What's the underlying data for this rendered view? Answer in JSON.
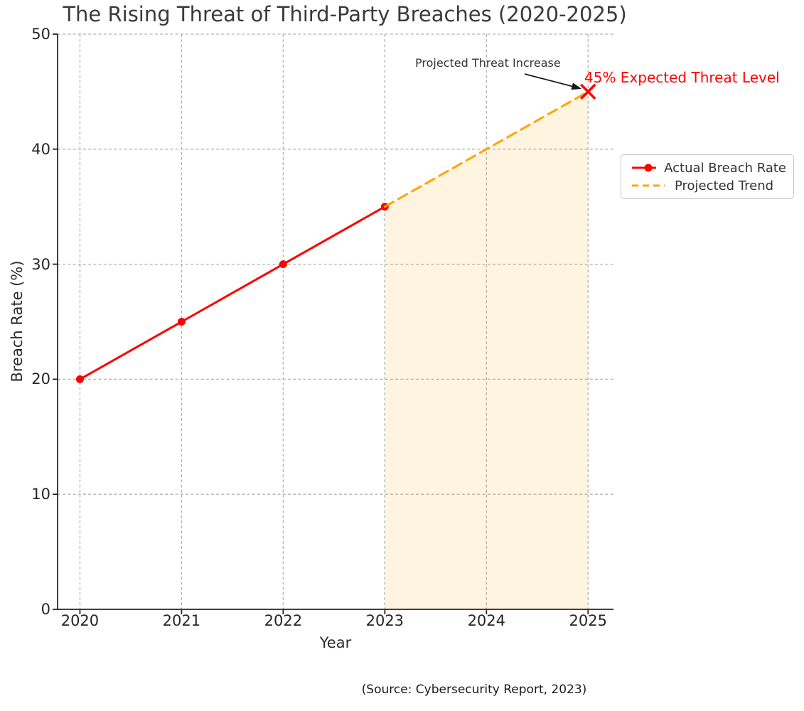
{
  "chart_data": {
    "type": "line",
    "title": "The Rising Threat of Third-Party Breaches (2020-2025)",
    "xlabel": "Year",
    "ylabel": "Breach Rate (%)",
    "xlim": [
      2019.78,
      2025.25
    ],
    "ylim": [
      0,
      50
    ],
    "xticks": [
      2020,
      2021,
      2022,
      2023,
      2024,
      2025
    ],
    "yticks": [
      0,
      10,
      20,
      30,
      40,
      50
    ],
    "grid": true,
    "grid_style": "dashed",
    "legend_position": "right-outside",
    "series": [
      {
        "name": "Actual Breach Rate",
        "color": "#ff0000",
        "style": "solid",
        "marker": "circle",
        "x": [
          2020,
          2021,
          2022,
          2023
        ],
        "y": [
          20,
          25,
          30,
          35
        ]
      },
      {
        "name": "Projected Trend",
        "color": "#ffa500",
        "style": "dashed",
        "marker": "none",
        "x": [
          2023,
          2024,
          2025
        ],
        "y": [
          35,
          40,
          45
        ]
      }
    ],
    "fill_between": {
      "x": [
        2023,
        2024,
        2025
      ],
      "y_top": [
        35,
        40,
        45
      ],
      "y_bottom": 0,
      "color": "rgba(255,165,0,0.12)"
    },
    "end_marker": {
      "x": 2025,
      "y": 45,
      "shape": "X",
      "color": "#ff0000"
    },
    "annotation": {
      "text": "Projected Threat Increase",
      "target_x": 2025,
      "target_y": 45
    },
    "threat_label": {
      "text": "45% Expected Threat Level",
      "color": "#ff0000"
    }
  },
  "footer": {
    "source": "(Source: Cybersecurity Report, 2023)"
  },
  "colors": {
    "grid": "#b2b2b2",
    "axis": "#262626",
    "tick_text": "#262626",
    "title_text": "#3a3a3a",
    "annotation_arrow": "#1a1a1a"
  }
}
